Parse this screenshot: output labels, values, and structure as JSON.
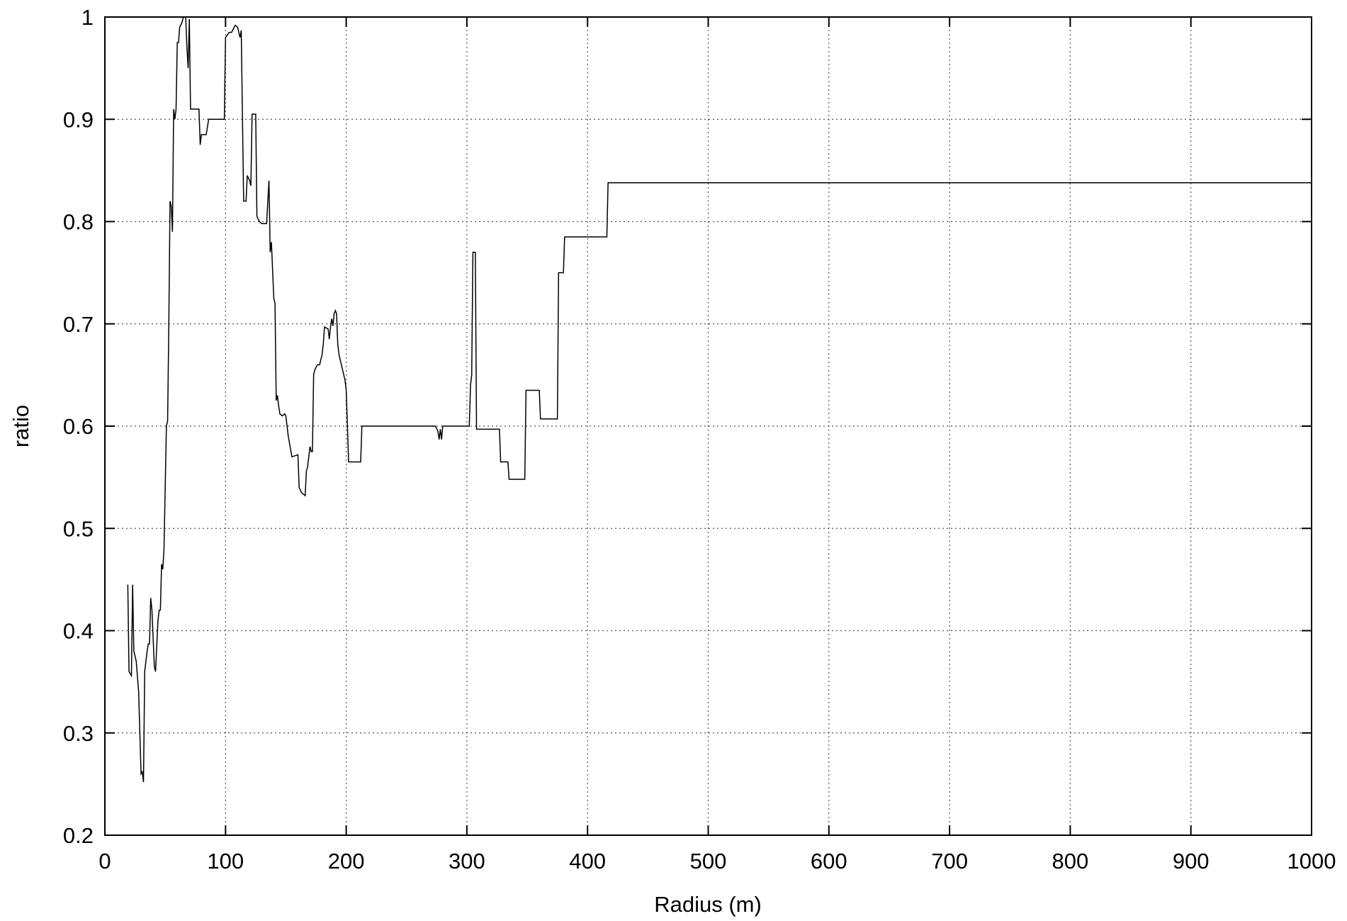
{
  "chart_data": {
    "type": "line",
    "xlabel": "Radius (m)",
    "ylabel": "ratio",
    "xlim": [
      0,
      1000
    ],
    "xticks": [
      0,
      100,
      200,
      300,
      400,
      500,
      600,
      700,
      800,
      900,
      1000
    ],
    "ylim": [
      0.2,
      1
    ],
    "yticks": [
      0.2,
      0.3,
      0.4,
      0.5,
      0.6,
      0.7,
      0.8,
      0.9,
      1
    ],
    "grid": true,
    "series": [
      {
        "color": "#000000",
        "x": [
          19,
          20,
          22,
          23,
          24,
          26,
          28,
          30,
          31,
          32,
          33,
          35,
          36,
          37,
          38,
          39,
          41,
          42,
          44,
          45,
          46,
          47,
          48,
          49,
          51,
          52,
          53,
          54,
          55,
          56,
          57,
          58,
          59,
          60,
          61,
          62,
          64,
          65,
          67,
          68,
          69,
          70,
          71,
          78,
          79,
          80,
          84,
          86,
          99,
          100,
          103,
          105,
          108,
          110,
          112,
          113,
          115,
          117,
          118,
          120,
          121,
          122,
          125,
          126,
          128,
          130,
          134,
          136,
          137,
          138,
          140,
          141,
          142,
          143,
          144,
          145,
          147,
          149,
          150,
          151,
          152,
          155,
          160,
          161,
          163,
          166,
          167,
          168,
          170,
          171,
          172,
          173,
          174,
          176,
          178,
          180,
          181,
          182,
          185,
          186,
          187,
          188,
          189,
          190,
          191,
          192,
          193,
          194,
          197,
          199,
          200,
          202,
          212,
          213,
          274,
          276,
          277,
          278,
          279,
          280,
          302,
          303,
          304,
          305,
          307,
          308,
          327,
          328,
          334,
          335,
          348,
          349,
          360,
          361,
          375,
          376,
          380,
          381,
          416,
          417,
          1000
        ],
        "values": [
          0.445,
          0.36,
          0.356,
          0.445,
          0.38,
          0.37,
          0.34,
          0.26,
          0.262,
          0.252,
          0.36,
          0.38,
          0.387,
          0.387,
          0.432,
          0.42,
          0.365,
          0.36,
          0.41,
          0.42,
          0.42,
          0.465,
          0.46,
          0.48,
          0.6,
          0.605,
          0.7,
          0.82,
          0.815,
          0.79,
          0.91,
          0.9,
          0.91,
          0.975,
          0.975,
          0.99,
          0.995,
          1.0,
          1.0,
          0.97,
          0.95,
          0.998,
          0.91,
          0.91,
          0.875,
          0.885,
          0.885,
          0.9,
          0.9,
          0.98,
          0.985,
          0.985,
          0.992,
          0.99,
          0.98,
          0.987,
          0.82,
          0.82,
          0.845,
          0.84,
          0.835,
          0.905,
          0.905,
          0.805,
          0.8,
          0.798,
          0.798,
          0.84,
          0.77,
          0.78,
          0.725,
          0.72,
          0.625,
          0.63,
          0.62,
          0.612,
          0.61,
          0.612,
          0.61,
          0.6,
          0.59,
          0.57,
          0.572,
          0.54,
          0.535,
          0.532,
          0.556,
          0.56,
          0.58,
          0.575,
          0.575,
          0.65,
          0.655,
          0.66,
          0.66,
          0.67,
          0.68,
          0.697,
          0.695,
          0.685,
          0.697,
          0.705,
          0.698,
          0.71,
          0.713,
          0.71,
          0.68,
          0.67,
          0.655,
          0.645,
          0.635,
          0.565,
          0.565,
          0.6,
          0.6,
          0.595,
          0.587,
          0.597,
          0.587,
          0.6,
          0.6,
          0.64,
          0.65,
          0.77,
          0.77,
          0.597,
          0.597,
          0.565,
          0.565,
          0.548,
          0.548,
          0.635,
          0.635,
          0.607,
          0.607,
          0.75,
          0.75,
          0.785,
          0.785,
          0.838,
          0.838
        ]
      }
    ]
  }
}
